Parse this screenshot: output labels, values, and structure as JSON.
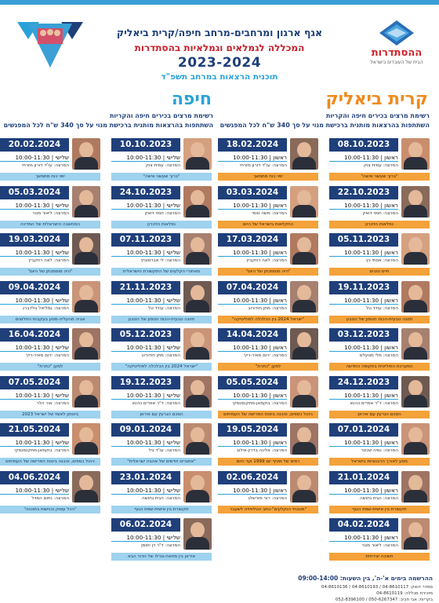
{
  "colors": {
    "navy": "#1f3f7a",
    "red": "#c8202a",
    "orange": "#f4a23a",
    "sky": "#2aa2d8",
    "lightblue": "#9ed2ee"
  },
  "header": {
    "logo_name": "ההסתדרות",
    "logo_sub": "הבית של העובדים בישראל",
    "line1": "אגף ארגון ומרחבים-מרחב חיפה/קרית ביאליק",
    "line2": "המכללה לגמלאים וגמלאיות בהסתדרות",
    "line3": "2023-2024",
    "line4": "תוכנית הרצאות במרחב תשפ\"ד"
  },
  "sections": {
    "bialik": {
      "title": "קרית ביאליק",
      "sub1": "רשימת מרצים בכירים חיפה והקריות",
      "sub2": "השתתפות בהרצאות מותנית ברכישת מנוי על סך 340 ש\"ח לכל המפגשים"
    },
    "haifa": {
      "title": "חיפה",
      "sub1": "רשימת מרצים בכירים חיפה והקריות",
      "sub2": "השתתפות בהרצאות מותנית ברכישת מנוי על סך 340 ש\"ח לכל המפגשים"
    }
  },
  "columns": [
    {
      "id": "col1",
      "style": "orange",
      "cards": [
        {
          "date": "08.10.2023",
          "time": "ראשון | 10:00-11:30",
          "lecturer": "המרצה: עמית צוק",
          "topic": "\"ברוך שעשני אישה\""
        },
        {
          "date": "22.10.2023",
          "time": "ראשון | 10:00-11:30",
          "lecturer": "המרצה: חמוי דואק",
          "topic": "נפלאות הזיכרון"
        },
        {
          "date": "05.11.2023",
          "time": "ראשון | 10:00-11:30",
          "lecturer": "המרצה: אסתי כץ",
          "topic": "חיים טובים"
        },
        {
          "date": "19.11.2023",
          "time": "ראשון | 10:00-11:30",
          "lecturer": "המרצה: עודד טל",
          "topic": "תזונה טבעית-הכוח הטמון של הטבע"
        },
        {
          "date": "03.12.2023",
          "time": "ראשון | 10:00-11:30",
          "lecturer": "המרצה: מלי מטעלם",
          "topic": "המערכת הפוליטית בתקופה החדשה"
        },
        {
          "date": "24.12.2023",
          "time": "ראשון | 10:00-11:30",
          "lecturer": "המרצה: ד\"ר אפרים כהנא",
          "topic": "הסכם הגרעין עם איראן"
        },
        {
          "date": "07.01.2024",
          "time": "ראשון | 10:00-11:30",
          "lecturer": "המרצה: נסיה שכטר",
          "topic": "מסע לאורך הרבגוניות בישראל"
        },
        {
          "date": "21.01.2024",
          "time": "ראשון | 10:00-11:30",
          "lecturer": "המרצה: הגית נחושה",
          "topic": "תקשורת בין אישית-שפת הגוף"
        },
        {
          "date": "04.02.2024",
          "time": "ראשון | 10:00-11:30",
          "lecturer": "המרצה: ליאור מנור",
          "topic": "חשיבה יצירתית"
        }
      ]
    },
    {
      "id": "col2",
      "style": "orange",
      "cards": [
        {
          "date": "18.02.2024",
          "time": "ראשון | 10:00-11:30",
          "lecturer": "המרצה: עו\"ד דורון מזרחי",
          "topic": "יפוי כוח מתמשך"
        },
        {
          "date": "03.03.2024",
          "time": "ראשון | 10:00-11:30",
          "lecturer": "המרצה: משה טומי",
          "topic": "החקלאות בישראל של היום"
        },
        {
          "date": "17.03.2024",
          "time": "ראשון | 10:00-11:30",
          "lecturer": "המרצה: לאה רוזקביץ",
          "topic": "\"היה מוסמכתן של היום\""
        },
        {
          "date": "07.04.2024",
          "time": "ראשון | 10:00-11:30",
          "lecturer": "המרצה: מתן חודורוב",
          "topic": "\"ישראל 2024 בין הכלכלה לפוליטיקה\""
        },
        {
          "date": "14.04.2024",
          "time": "ראשון | 10:00-11:30",
          "lecturer": "המרצה: ירום מאיר-רייך",
          "topic": "למען \"כתרת\""
        },
        {
          "date": "05.05.2024",
          "time": "ראשון | 10:00-11:30",
          "lecturer": "המרצה: בוקמאן-מתקנמנסקי",
          "topic": "ניהול כספים, והכנה ביטוח הפרישה של העמיתים"
        },
        {
          "date": "19.05.2024",
          "time": "ראשון | 10:00-11:30",
          "lecturer": "המרצה: אלינה בדרין-אילוב",
          "topic": "רמים של מטיף יום 1999 ועד היום"
        },
        {
          "date": "02.06.2024",
          "time": "ראשון | 10:00-11:30",
          "lecturer": "המרצה: רוני מזרשלג",
          "topic": "\"מטבחי הנקלעים\"-כתב הטלוויזיה לשעבר"
        }
      ]
    },
    {
      "id": "col3",
      "style": "blue",
      "cards": [
        {
          "date": "10.10.2023",
          "time": "שלישי | 10:00-11:30",
          "lecturer": "המרצה: עמית צוק",
          "topic": "\"ברוך שעשני אישה\""
        },
        {
          "date": "24.10.2023",
          "time": "שלישי | 10:00-11:30",
          "lecturer": "המרצה: חמוי דואק",
          "topic": "נפלאות הזיכרון"
        },
        {
          "date": "07.11.2023",
          "time": "שלישי | 10:00-11:30",
          "lecturer": "המרצה: לי אברמוביץ",
          "topic": "מאחורי הקלעים של התקשורת הישראלית"
        },
        {
          "date": "21.11.2023",
          "time": "שלישי | 10:00-11:30",
          "lecturer": "המרצה: עודד טל",
          "topic": "תזונה טבעית-הכוח הטמון של הטבע"
        },
        {
          "date": "05.12.2023",
          "time": "שלישי | 10:00-11:30",
          "lecturer": "המרצה: מתן חודורוב",
          "topic": "\"ישראל 2024 בין הכלכלה לפוליטיקה\""
        },
        {
          "date": "19.12.2023",
          "time": "שלישי | 10:00-11:30",
          "lecturer": "המרצה: ד\"ר אפרים כהנא",
          "topic": "הסכם הגרעין עם איראן"
        },
        {
          "date": "09.01.2024",
          "time": "שלישי | 10:00-11:30",
          "lecturer": "המרצה: עו\"ד גיל",
          "topic": "\"אתגרים חדשים של אהבה ישראלית\""
        },
        {
          "date": "23.01.2024",
          "time": "שלישי | 10:00-11:30",
          "lecturer": "המרצה: הגית נחושה",
          "topic": "תקשורת בין אישית-שפת הגוף"
        },
        {
          "date": "06.02.2024",
          "time": "שלישי | 10:00-11:30",
          "lecturer": "המרצה: ד\"ר דן ויסמן",
          "topic": "איראן בין מחאה-גורלו של הדור הבא"
        }
      ]
    },
    {
      "id": "col4",
      "style": "blue",
      "cards": [
        {
          "date": "20.02.2024",
          "time": "שלישי | 10:00-11:30",
          "lecturer": "המרצה: עו\"ד דורון מזרחי",
          "topic": "יפוי כוח מתמשך"
        },
        {
          "date": "05.03.2024",
          "time": "שלישי | 10:00-11:30",
          "lecturer": "המרצה: ליאור מנור",
          "topic": "המחשבה הישראלית של המדינה"
        },
        {
          "date": "19.03.2024",
          "time": "שלישי | 10:00-11:30",
          "lecturer": "המרצה: לאה רוזקביץ",
          "topic": "\"היה מוסמכתן של היום\""
        },
        {
          "date": "09.04.2024",
          "time": "שלישי | 10:00-11:30",
          "lecturer": "המרצה: גמליאל גולדברג",
          "topic": "אביה מהעליה-מסע בעקבות החלוצים"
        },
        {
          "date": "16.04.2024",
          "time": "שלישי | 10:00-11:30",
          "lecturer": "המרצה: ירום מאיר-רייך",
          "topic": "למען \"כתרת\""
        },
        {
          "date": "07.05.2024",
          "time": "שלישי | 10:00-11:30",
          "lecturer": "המרצה: אור הלר",
          "topic": "ביטחון לאומי של ישראל 2023"
        },
        {
          "date": "21.05.2024",
          "time": "שלישי | 10:00-11:30",
          "lecturer": "המרצה: בוקמאן-מתקנמנסקי",
          "topic": "ניהול כספים, והכנה ביטוח הפרישה של העמיתים"
        },
        {
          "date": "04.06.2024",
          "time": "שלישי | 10:00-11:30",
          "lecturer": "המרצה: נחום המויל",
          "topic": "\"הכל עסוק וכנישות בתוכנה\""
        }
      ]
    }
  ],
  "footer": {
    "hours": "ההרשמה בימים א'-ה', בין השעות: 09:00-14:00",
    "phones1": "סמדר דואק: 04-8610117 / 04-8610193 / 04-8610136",
    "phones2": "מזכירת מכללה: 04-8610119",
    "phones3": "בקריות: אבי חביב: 050-6267347 / 052-8396100"
  }
}
